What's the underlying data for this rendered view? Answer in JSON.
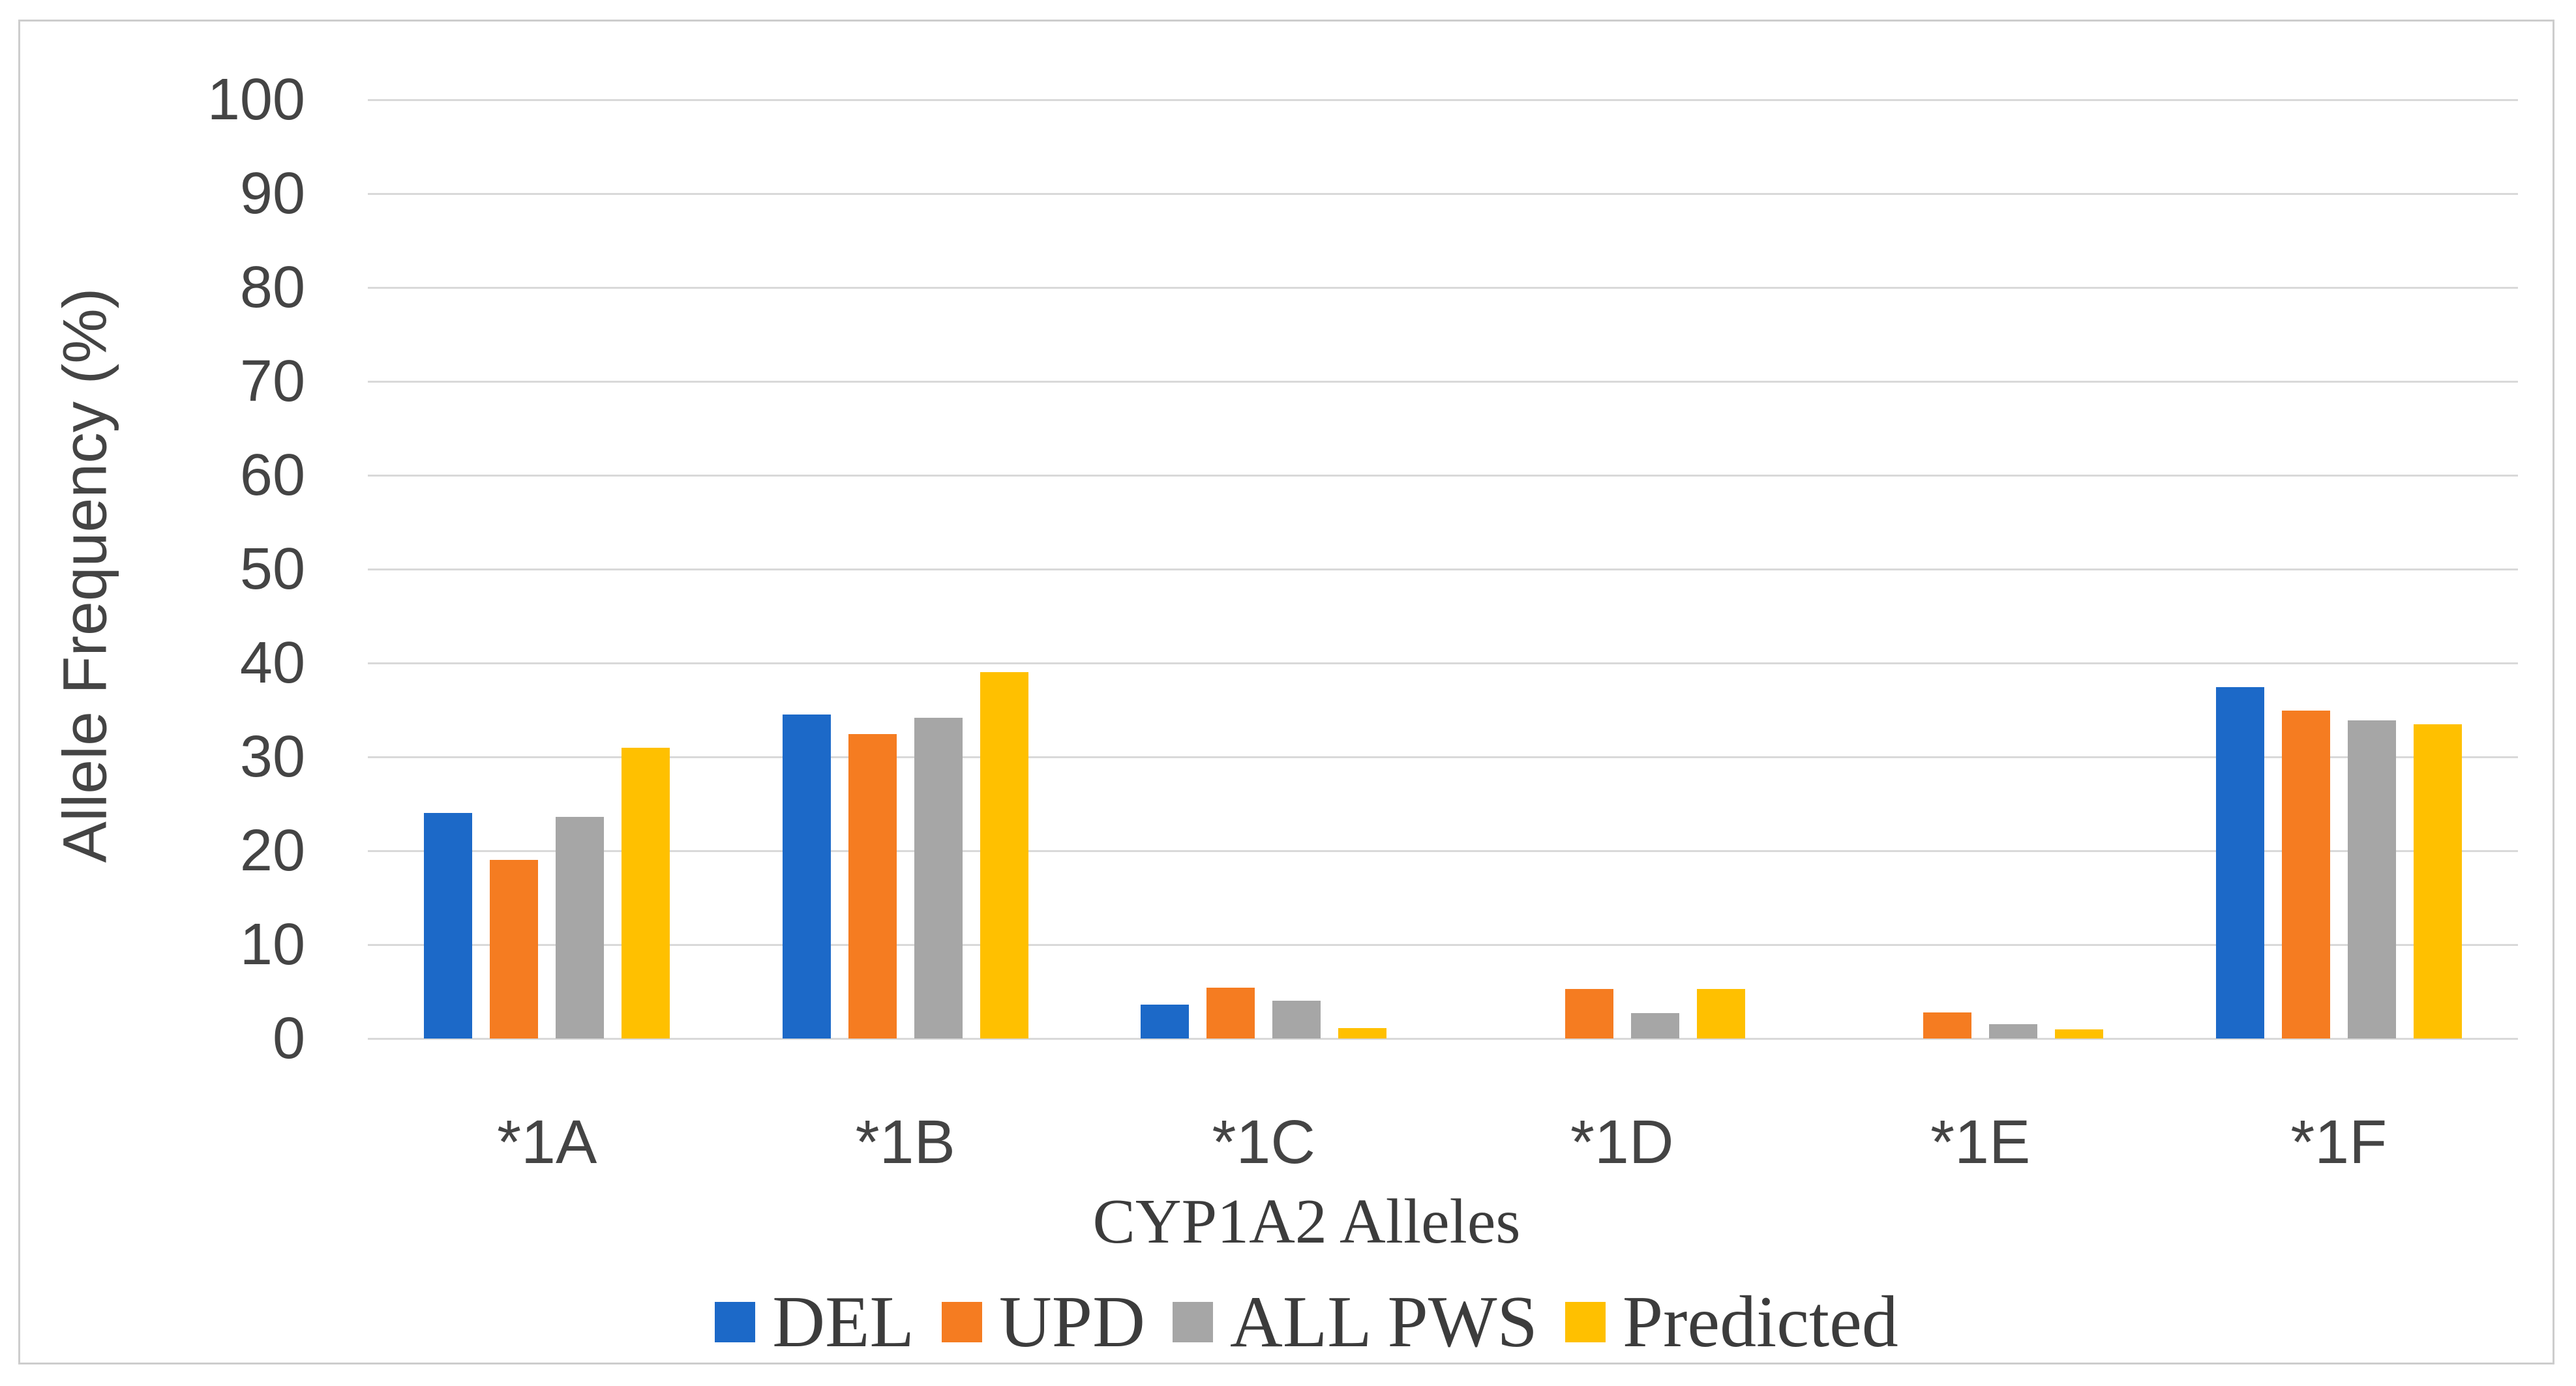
{
  "figure": {
    "background": "#ffffff",
    "border_color": "#cdcdcd",
    "gridline_color": "#d9d9d9",
    "text_color": "#444444"
  },
  "chart_data": {
    "type": "bar",
    "title": "",
    "xlabel": "CYP1A2 Alleles",
    "ylabel": "Allele Frequency (%)",
    "ylim": [
      0,
      100
    ],
    "y_ticks": [
      0,
      10,
      20,
      30,
      40,
      50,
      60,
      70,
      80,
      90,
      100
    ],
    "grid": "horizontal gridlines on, no vertical axis line",
    "legend_position": "bottom",
    "categories": [
      "*1A",
      "*1B",
      "*1C",
      "*1D",
      "*1E",
      "*1F"
    ],
    "series": [
      {
        "name": "DEL",
        "color": "#1c69c8",
        "values": [
          24.0,
          34.5,
          3.6,
          0,
          0,
          37.4
        ]
      },
      {
        "name": "UPD",
        "color": "#f57c21",
        "values": [
          19.0,
          32.4,
          5.4,
          5.3,
          2.8,
          34.9
        ]
      },
      {
        "name": "ALL PWS",
        "color": "#a6a6a6",
        "values": [
          23.6,
          34.2,
          4.0,
          2.7,
          1.5,
          33.9
        ]
      },
      {
        "name": "Predicted",
        "color": "#ffc000",
        "values": [
          31.0,
          39.0,
          1.1,
          5.3,
          1.0,
          33.5
        ]
      }
    ]
  }
}
